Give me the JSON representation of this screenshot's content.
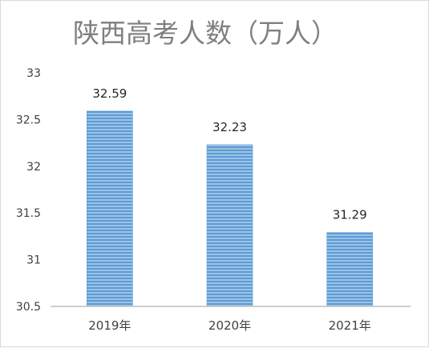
{
  "chart_data": {
    "type": "bar",
    "title": "陕西高考人数（万人）",
    "categories": [
      "2019年",
      "2020年",
      "2021年"
    ],
    "values": [
      32.59,
      32.23,
      31.29
    ],
    "data_labels": [
      "32.59",
      "32.23",
      "31.29"
    ],
    "y_ticks": [
      "30.5",
      "31",
      "31.5",
      "32",
      "32.5",
      "33"
    ],
    "ylim": [
      30.5,
      33
    ],
    "grid": false,
    "legend": "none",
    "colors": {
      "bar_light": "#9dc3e6",
      "bar_dark": "#5b9bd5",
      "axis": "#bfbfbf"
    }
  }
}
